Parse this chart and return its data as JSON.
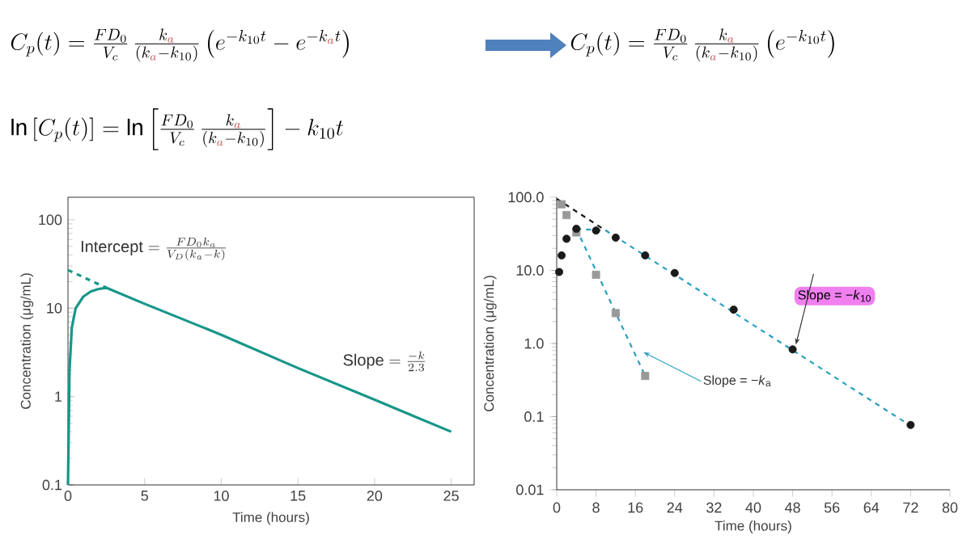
{
  "chart_data": [
    {
      "type": "other",
      "annotations": [
        "C_p(t) = \\frac{FD_0}{V_c}\\,\\frac{k_{\\color[HTML]{C0504D}a}}{(k_{\\color[HTML]{C0504D}a} - k_{10})}\\left(e^{-k_{10}t} - e^{-k_{\\color[HTML]{C0504D}a}t}\\right)",
        "C_p(t) = \\frac{FD_0}{V_c}\\,\\frac{k_{\\color[HTML]{C0504D}a}}{(k_{\\color[HTML]{C0504D}a} - k_{10})}\\left(e^{-k_{10}t}\\right)",
        "\\ln\\left[C_p(t)\\right] = \\ln\\left[\\frac{FD_0}{V_c}\\,\\frac{k_{\\color[HTML]{C0504D}a}}{(k_{\\color[HTML]{C0504D}a} - k_{10})}\\right] - k_{10}t"
      ]
    },
    {
      "type": "line",
      "xlabel": "Time (hours)",
      "ylabel": "Concentration (μg/mL)",
      "log": "y",
      "xlim": [
        0,
        26.5
      ],
      "ylim": [
        0.1,
        180
      ],
      "xticks": [
        0,
        5,
        10,
        15,
        20,
        25
      ],
      "yticks": [
        0.1,
        1,
        10,
        100
      ],
      "series": [
        {
          "type": "line",
          "color": "#17968a",
          "line_style": "solid",
          "x": [
            0,
            0.1,
            0.25,
            0.5,
            1,
            1.5,
            2,
            2.5,
            5,
            10,
            15,
            20,
            25
          ],
          "values": [
            0.1,
            2,
            6,
            10,
            13.5,
            15.5,
            16.5,
            17,
            11.2,
            5.0,
            2.1,
            0.92,
            0.4
          ]
        },
        {
          "type": "line",
          "color": "#17968a",
          "line_style": "dashed",
          "x": [
            0,
            2.5
          ],
          "values": [
            27,
            17
          ]
        }
      ],
      "annotations": [
        {
          "text": "\\text{Intercept} = \\frac{FD_0k_a}{V_D(k_a - k)}",
          "x": 0,
          "y": 27
        },
        "\\text{Slope} = \\frac{-k}{2.3}"
      ]
    },
    {
      "type": "scatter",
      "xlabel": "Time (hours)",
      "ylabel": "Concentration (μg/mL)",
      "log": "y",
      "xlim": [
        0,
        80
      ],
      "ylim": [
        0.01,
        100
      ],
      "xticks": [
        0,
        8,
        16,
        24,
        32,
        40,
        48,
        56,
        64,
        72,
        80
      ],
      "yticks": [
        0.01,
        0.1,
        {
          "value": 1,
          "label": "1.0"
        },
        {
          "value": 10,
          "label": "10.0"
        },
        {
          "value": 100,
          "label": "100.0"
        }
      ],
      "series": [
        {
          "type": "line",
          "color": "#2a9fc0",
          "line_style": "dashed",
          "x": [
            4,
            10,
            72
          ],
          "values": [
            37,
            35,
            0.075
          ]
        },
        {
          "type": "line",
          "color": "#2a9fc0",
          "line_style": "dashed",
          "x": [
            4,
            18
          ],
          "values": [
            37,
            0.36
          ]
        },
        {
          "type": "line",
          "color": "#1a1a1a",
          "line_style": "dashed",
          "x": [
            0,
            10
          ],
          "values": [
            95,
            35
          ]
        },
        {
          "type": "scatter",
          "color": "#999999",
          "marker": "square",
          "x": [
            1,
            2,
            4,
            8,
            12,
            18
          ],
          "values": [
            80,
            57,
            33,
            8.7,
            2.6,
            0.36
          ]
        },
        {
          "type": "scatter",
          "color": "#1a1a1a",
          "marker": "circle",
          "x": [
            0.5,
            1,
            2,
            4,
            8,
            12,
            18,
            24,
            36,
            48,
            72
          ],
          "values": [
            9.5,
            16,
            27,
            37,
            35,
            28,
            16,
            9.2,
            2.9,
            0.83,
            0.077
          ]
        }
      ],
      "annotations": [
        {
          "text": "Slope = −*k*$_{10}$",
          "x": 48,
          "y": 0.83
        },
        {
          "text": "Slope = −*k*$_{a}$",
          "x": 17,
          "y": 0.8
        }
      ]
    }
  ]
}
